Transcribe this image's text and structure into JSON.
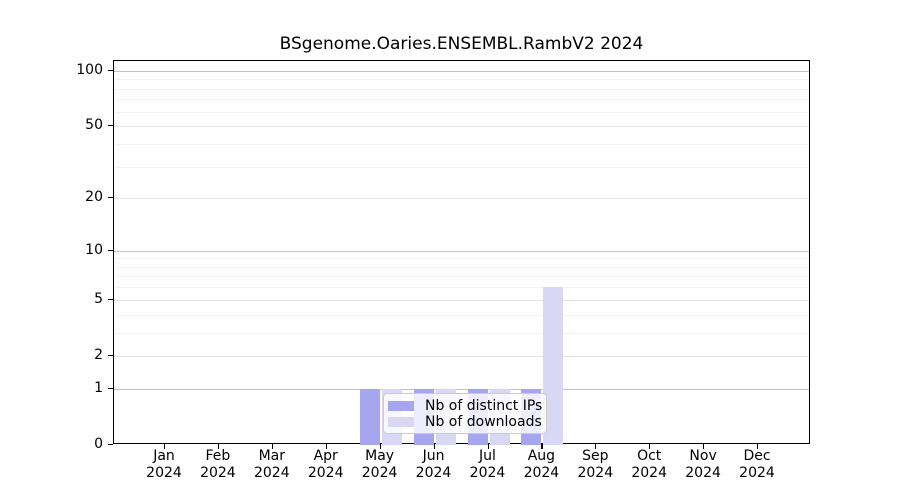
{
  "title": "BSgenome.Oaries.ENSEMBL.RambV2 2024",
  "chart_data": {
    "type": "bar",
    "title": "BSgenome.Oaries.ENSEMBL.RambV2 2024",
    "x_categories": [
      "Jan",
      "Feb",
      "Mar",
      "Apr",
      "May",
      "Jun",
      "Jul",
      "Aug",
      "Sep",
      "Oct",
      "Nov",
      "Dec"
    ],
    "x_sub_label": "2024",
    "series": [
      {
        "name": "Nb of distinct IPs",
        "color": "#a5a5f0",
        "values": [
          0,
          0,
          0,
          0,
          1,
          1,
          1,
          1,
          0,
          0,
          0,
          0
        ]
      },
      {
        "name": "Nb of downloads",
        "color": "#d8d8f5",
        "values": [
          0,
          0,
          0,
          0,
          1,
          1,
          1,
          6,
          0,
          0,
          0,
          0
        ]
      }
    ],
    "y_scale": "log1p",
    "ylim": [
      0,
      113
    ],
    "y_tick_values": [
      0,
      1,
      2,
      5,
      10,
      20,
      50,
      100
    ],
    "y_major_gridlines": [
      1,
      2,
      5,
      10,
      20,
      50,
      100
    ],
    "y_strong_gridlines": [
      1,
      10,
      100
    ],
    "y_minor_gridlines": [
      3,
      4,
      6,
      7,
      8,
      9,
      30,
      40,
      60,
      70,
      80,
      90
    ],
    "grid": true,
    "legend_position": "inside-bottom-center"
  },
  "colors": {
    "distinct_ips": "#a5a5f0",
    "downloads": "#d8d8f5",
    "grid_strong": "#c2c2c2",
    "grid_major": "#e4e4e4",
    "grid_minor": "#f2f2f2",
    "axis": "#000000",
    "legend_border": "#cccccc",
    "background": "#ffffff"
  }
}
